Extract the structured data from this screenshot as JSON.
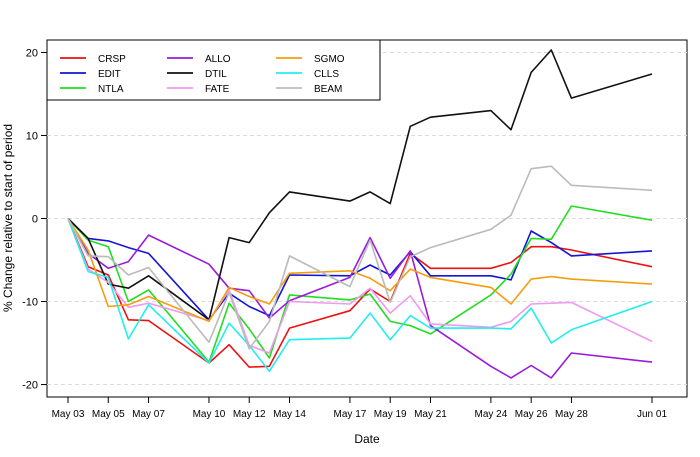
{
  "chart_data": {
    "type": "line",
    "title": "",
    "xlabel": "Date",
    "ylabel": "% Change relative to start of period",
    "ylim": [
      -21.5,
      21.5
    ],
    "yticks": [
      -20,
      -10,
      0,
      10,
      20
    ],
    "grid": "horizontal dashed",
    "legend_position": "top-left",
    "x_dates": [
      "2021-05-03",
      "2021-05-04",
      "2021-05-05",
      "2021-05-06",
      "2021-05-07",
      "2021-05-10",
      "2021-05-11",
      "2021-05-12",
      "2021-05-13",
      "2021-05-14",
      "2021-05-17",
      "2021-05-18",
      "2021-05-19",
      "2021-05-20",
      "2021-05-21",
      "2021-05-24",
      "2021-05-25",
      "2021-05-26",
      "2021-05-27",
      "2021-05-28",
      "2021-06-01"
    ],
    "tick_dates": [
      "2021-05-03",
      "2021-05-05",
      "2021-05-07",
      "2021-05-10",
      "2021-05-12",
      "2021-05-14",
      "2021-05-17",
      "2021-05-19",
      "2021-05-21",
      "2021-05-24",
      "2021-05-26",
      "2021-05-28",
      "2021-06-01"
    ],
    "tick_labels": [
      "May 03",
      "May 05",
      "May 07",
      "May 10",
      "May 12",
      "May 14",
      "May 17",
      "May 19",
      "May 21",
      "May 24",
      "May 26",
      "May 28",
      "Jun 01"
    ],
    "series": [
      {
        "name": "CRSP",
        "color": "#ee1111",
        "values": [
          0,
          -5.8,
          -6.8,
          -12.2,
          -12.3,
          -17.4,
          -15.2,
          -17.9,
          -17.8,
          -13.2,
          -11.1,
          -8.5,
          -10.0,
          -4.2,
          -6.0,
          -6.0,
          -5.3,
          -3.4,
          -3.4,
          -3.8,
          -5.8
        ]
      },
      {
        "name": "EDIT",
        "color": "#1414d4",
        "values": [
          0,
          -2.4,
          -2.7,
          -3.5,
          -4.2,
          -12.2,
          -9.0,
          -10.6,
          -11.7,
          -6.8,
          -6.9,
          -5.6,
          -6.8,
          -4.0,
          -6.9,
          -6.9,
          -7.4,
          -1.5,
          -2.9,
          -4.5,
          -3.9
        ]
      },
      {
        "name": "NTLA",
        "color": "#22dd22",
        "values": [
          0,
          -2.6,
          -3.4,
          -10.0,
          -8.6,
          -17.3,
          -10.2,
          -13.3,
          -16.8,
          -9.2,
          -9.8,
          -9.1,
          -12.4,
          -12.9,
          -13.9,
          -9.2,
          -6.7,
          -2.4,
          -2.5,
          1.5,
          -0.2
        ]
      },
      {
        "name": "ALLO",
        "color": "#9a1bdb",
        "values": [
          0,
          -4.2,
          -6.0,
          -5.2,
          -2.0,
          -5.5,
          -8.4,
          -8.7,
          -12.0,
          -9.9,
          -7.1,
          -2.3,
          -7.2,
          -3.9,
          -12.9,
          -17.8,
          -19.2,
          -17.7,
          -19.2,
          -16.2,
          -17.3
        ]
      },
      {
        "name": "DTIL",
        "color": "#111111",
        "values": [
          0,
          -2.4,
          -7.9,
          -8.4,
          -6.9,
          -12.2,
          -2.3,
          -2.9,
          0.7,
          3.2,
          2.1,
          3.2,
          1.8,
          11.1,
          12.2,
          13.0,
          10.7,
          17.6,
          20.3,
          14.5,
          17.4
        ]
      },
      {
        "name": "FATE",
        "color": "#ef99ef",
        "values": [
          0,
          -6.1,
          -7.7,
          -10.7,
          -10.2,
          -12.3,
          -8.6,
          -15.3,
          -16.2,
          -10.0,
          -10.3,
          -8.4,
          -11.4,
          -9.3,
          -12.7,
          -13.1,
          -12.4,
          -10.3,
          -10.2,
          -10.1,
          -14.8
        ]
      },
      {
        "name": "SGMO",
        "color": "#f59d0f",
        "values": [
          0,
          -3.8,
          -10.6,
          -10.4,
          -9.4,
          -12.4,
          -8.3,
          -9.4,
          -10.3,
          -6.6,
          -6.3,
          -7.2,
          -8.7,
          -6.1,
          -7.1,
          -8.3,
          -10.3,
          -7.3,
          -7.0,
          -7.3,
          -7.9
        ]
      },
      {
        "name": "CLLS",
        "color": "#22eeee",
        "values": [
          0,
          -6.4,
          -7.1,
          -14.5,
          -10.4,
          -17.4,
          -12.6,
          -15.3,
          -18.4,
          -14.6,
          -14.4,
          -11.4,
          -14.6,
          -11.7,
          -13.2,
          -13.2,
          -13.3,
          -10.8,
          -15.0,
          -13.4,
          -10.0
        ]
      },
      {
        "name": "BEAM",
        "color": "#bbbbbb",
        "values": [
          0,
          -4.5,
          -4.6,
          -6.8,
          -5.9,
          -14.9,
          -8.9,
          -15.7,
          -12.4,
          -4.5,
          -8.2,
          -2.6,
          -10.1,
          -4.6,
          -3.5,
          -1.3,
          0.4,
          6.0,
          6.3,
          4.0,
          3.4
        ]
      }
    ]
  }
}
